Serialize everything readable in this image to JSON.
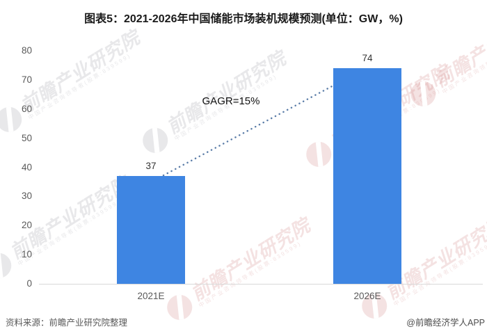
{
  "title": "图表5：2021-2026年中国储能市场装机规模预测(单位：GW，%)",
  "chart_data": {
    "type": "bar",
    "title": "图表5：2021-2026年中国储能市场装机规模预测(单位：GW，%)",
    "unit": "GW，%",
    "categories": [
      "2021E",
      "2026E"
    ],
    "values": [
      37,
      74
    ],
    "annotation": "GAGR=15%",
    "ylim": [
      0,
      80
    ],
    "yticks": [
      0,
      10,
      20,
      30,
      40,
      50,
      60,
      70,
      80
    ],
    "grid": false,
    "legend": false,
    "bar_color": "#3e85e2",
    "dotted_line_color": "#5b7da8",
    "axis_line_color": "#d9d9d9"
  },
  "footer": {
    "source": "资料来源：前瞻产业研究院整理",
    "credit": "@前瞻经济学人APP"
  },
  "watermark": {
    "brand": "前瞻产业研究院",
    "tagline": "中国产业咨询领导者(股票:839599)"
  }
}
